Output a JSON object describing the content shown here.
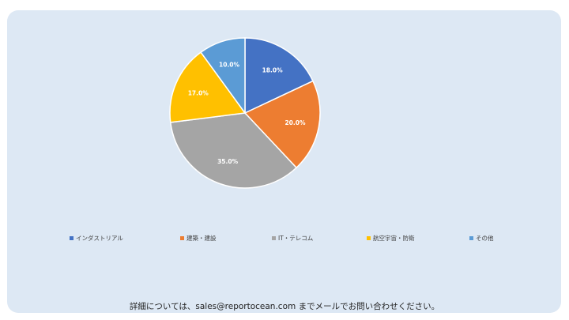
{
  "chart_data": {
    "type": "pie",
    "title": "",
    "legend_position": "bottom",
    "slices": [
      {
        "label": "インダストリアル",
        "value": 18.0,
        "display": "18.0%",
        "color": "#4472c4"
      },
      {
        "label": "建築・建設",
        "value": 20.0,
        "display": "20.0%",
        "color": "#ed7d31"
      },
      {
        "label": "IT・テレコム",
        "value": 35.0,
        "display": "35.0%",
        "color": "#a5a5a5"
      },
      {
        "label": "航空宇宙・防衛",
        "value": 17.0,
        "display": "17.0%",
        "color": "#ffc000"
      },
      {
        "label": "その他",
        "value": 10.0,
        "display": "10.0%",
        "color": "#5b9bd5"
      }
    ]
  },
  "footer": {
    "contact_text": "詳細については、sales@reportocean.com までメールでお問い合わせください。"
  }
}
